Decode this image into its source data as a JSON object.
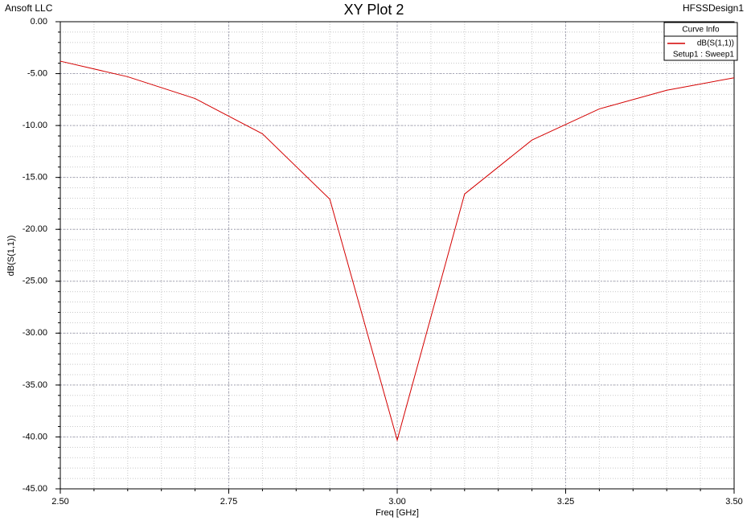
{
  "header": {
    "company": "Ansoft LLC",
    "design": "HFSSDesign1"
  },
  "chart_data": {
    "type": "line",
    "title": "XY Plot 2",
    "x_label": "Freq [GHz]",
    "y_label": "dB(S(1,1))",
    "legend_title": "Curve Info",
    "legend_subtitle": "Setup1 : Sweep1",
    "legend": "top-right",
    "x": [
      2.5,
      2.6,
      2.7,
      2.8,
      2.9,
      3.0,
      3.1,
      3.2,
      3.3,
      3.4,
      3.5
    ],
    "series": [
      {
        "name": "dB(S(1,1))",
        "color": "#d40000",
        "values": [
          -3.8,
          -5.3,
          -7.4,
          -10.8,
          -17.1,
          -40.3,
          -16.6,
          -11.4,
          -8.4,
          -6.6,
          -5.4
        ]
      }
    ],
    "xlim": [
      2.5,
      3.5
    ],
    "xticks": [
      {
        "value": 2.5,
        "label": "2.50"
      },
      {
        "value": 2.75,
        "label": "2.75"
      },
      {
        "value": 3,
        "label": "3.00"
      },
      {
        "value": 3.25,
        "label": "3.25"
      },
      {
        "value": 3.5,
        "label": "3.50"
      }
    ],
    "ylim": [
      -45,
      0
    ],
    "yticks": [
      {
        "value": 0,
        "label": "0.00"
      },
      {
        "value": -5,
        "label": "-5.00"
      },
      {
        "value": -10,
        "label": "-10.00"
      },
      {
        "value": -15,
        "label": "-15.00"
      },
      {
        "value": -20,
        "label": "-20.00"
      },
      {
        "value": -25,
        "label": "-25.00"
      },
      {
        "value": -30,
        "label": "-30.00"
      },
      {
        "value": -35,
        "label": "-35.00"
      },
      {
        "value": -40,
        "label": "-40.00"
      },
      {
        "value": -45,
        "label": "-45.00"
      }
    ],
    "grid": true
  }
}
